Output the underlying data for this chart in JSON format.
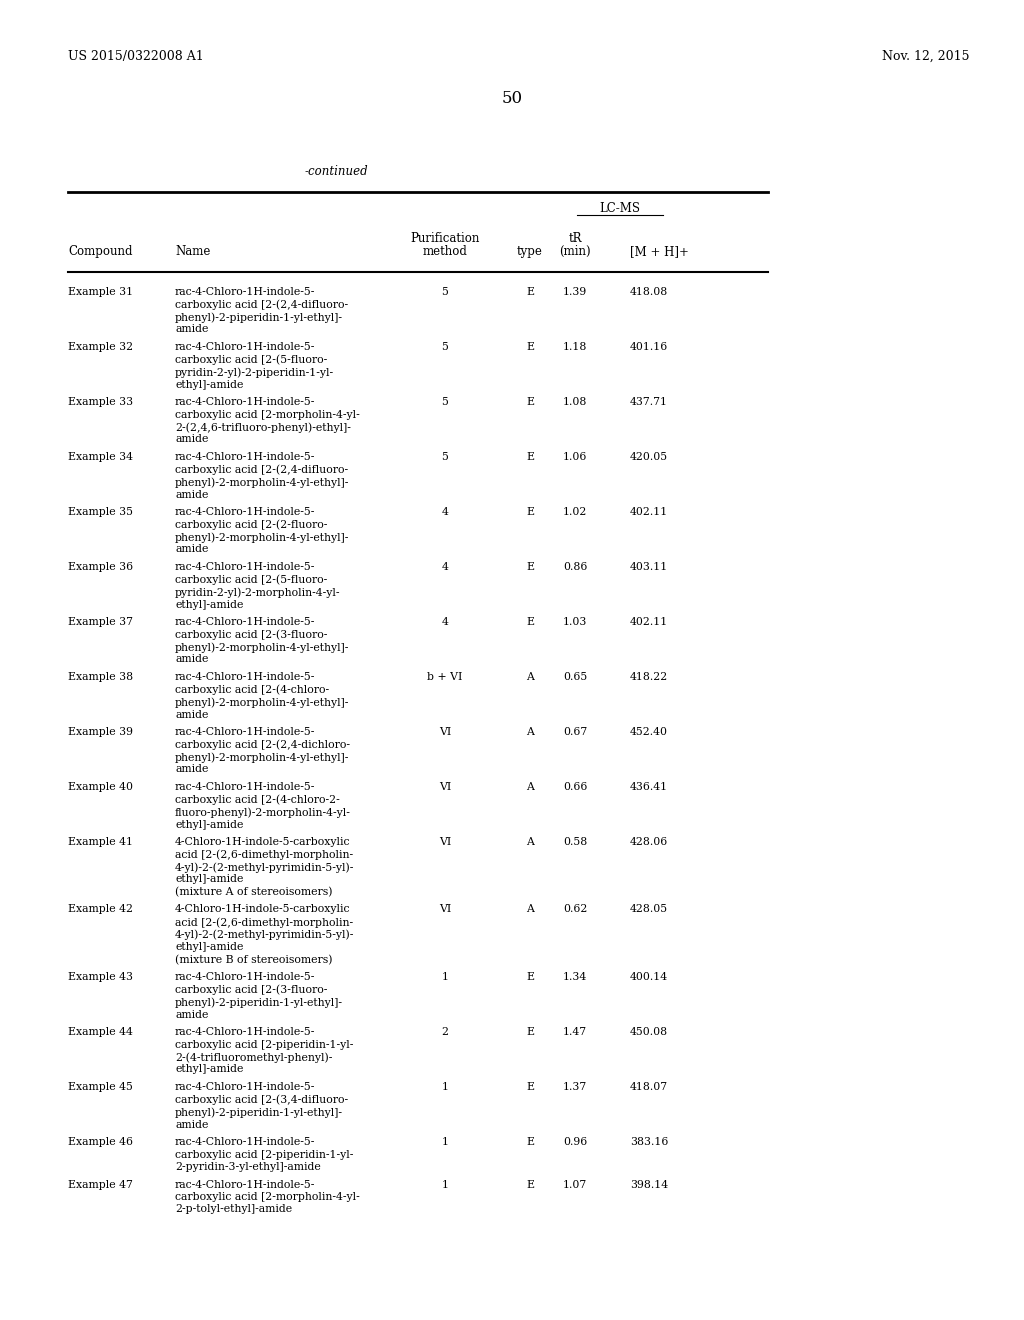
{
  "header_left": "US 2015/0322008 A1",
  "header_right": "Nov. 12, 2015",
  "page_number": "50",
  "continued_label": "-continued",
  "rows": [
    {
      "compound": "Example 31",
      "name": "rac-4-Chloro-1H-indole-5-\ncarboxylic acid [2-(2,4-difluoro-\nphenyl)-2-piperidin-1-yl-ethyl]-\namide",
      "purif": "5",
      "type": "E",
      "tR": "1.39",
      "mh": "418.08"
    },
    {
      "compound": "Example 32",
      "name": "rac-4-Chloro-1H-indole-5-\ncarboxylic acid [2-(5-fluoro-\npyridin-2-yl)-2-piperidin-1-yl-\nethyl]-amide",
      "purif": "5",
      "type": "E",
      "tR": "1.18",
      "mh": "401.16"
    },
    {
      "compound": "Example 33",
      "name": "rac-4-Chloro-1H-indole-5-\ncarboxylic acid [2-morpholin-4-yl-\n2-(2,4,6-trifluoro-phenyl)-ethyl]-\namide",
      "purif": "5",
      "type": "E",
      "tR": "1.08",
      "mh": "437.71"
    },
    {
      "compound": "Example 34",
      "name": "rac-4-Chloro-1H-indole-5-\ncarboxylic acid [2-(2,4-difluoro-\nphenyl)-2-morpholin-4-yl-ethyl]-\namide",
      "purif": "5",
      "type": "E",
      "tR": "1.06",
      "mh": "420.05"
    },
    {
      "compound": "Example 35",
      "name": "rac-4-Chloro-1H-indole-5-\ncarboxylic acid [2-(2-fluoro-\nphenyl)-2-morpholin-4-yl-ethyl]-\namide",
      "purif": "4",
      "type": "E",
      "tR": "1.02",
      "mh": "402.11"
    },
    {
      "compound": "Example 36",
      "name": "rac-4-Chloro-1H-indole-5-\ncarboxylic acid [2-(5-fluoro-\npyridin-2-yl)-2-morpholin-4-yl-\nethyl]-amide",
      "purif": "4",
      "type": "E",
      "tR": "0.86",
      "mh": "403.11"
    },
    {
      "compound": "Example 37",
      "name": "rac-4-Chloro-1H-indole-5-\ncarboxylic acid [2-(3-fluoro-\nphenyl)-2-morpholin-4-yl-ethyl]-\namide",
      "purif": "4",
      "type": "E",
      "tR": "1.03",
      "mh": "402.11"
    },
    {
      "compound": "Example 38",
      "name": "rac-4-Chloro-1H-indole-5-\ncarboxylic acid [2-(4-chloro-\nphenyl)-2-morpholin-4-yl-ethyl]-\namide",
      "purif": "b + VI",
      "type": "A",
      "tR": "0.65",
      "mh": "418.22"
    },
    {
      "compound": "Example 39",
      "name": "rac-4-Chloro-1H-indole-5-\ncarboxylic acid [2-(2,4-dichloro-\nphenyl)-2-morpholin-4-yl-ethyl]-\namide",
      "purif": "VI",
      "type": "A",
      "tR": "0.67",
      "mh": "452.40"
    },
    {
      "compound": "Example 40",
      "name": "rac-4-Chloro-1H-indole-5-\ncarboxylic acid [2-(4-chloro-2-\nfluoro-phenyl)-2-morpholin-4-yl-\nethyl]-amide",
      "purif": "VI",
      "type": "A",
      "tR": "0.66",
      "mh": "436.41"
    },
    {
      "compound": "Example 41",
      "name": "4-Chloro-1H-indole-5-carboxylic\nacid [2-(2,6-dimethyl-morpholin-\n4-yl)-2-(2-methyl-pyrimidin-5-yl)-\nethyl]-amide\n(mixture A of stereoisomers)",
      "purif": "VI",
      "type": "A",
      "tR": "0.58",
      "mh": "428.06"
    },
    {
      "compound": "Example 42",
      "name": "4-Chloro-1H-indole-5-carboxylic\nacid [2-(2,6-dimethyl-morpholin-\n4-yl)-2-(2-methyl-pyrimidin-5-yl)-\nethyl]-amide\n(mixture B of stereoisomers)",
      "purif": "VI",
      "type": "A",
      "tR": "0.62",
      "mh": "428.05"
    },
    {
      "compound": "Example 43",
      "name": "rac-4-Chloro-1H-indole-5-\ncarboxylic acid [2-(3-fluoro-\nphenyl)-2-piperidin-1-yl-ethyl]-\namide",
      "purif": "1",
      "type": "E",
      "tR": "1.34",
      "mh": "400.14"
    },
    {
      "compound": "Example 44",
      "name": "rac-4-Chloro-1H-indole-5-\ncarboxylic acid [2-piperidin-1-yl-\n2-(4-trifluoromethyl-phenyl)-\nethyl]-amide",
      "purif": "2",
      "type": "E",
      "tR": "1.47",
      "mh": "450.08"
    },
    {
      "compound": "Example 45",
      "name": "rac-4-Chloro-1H-indole-5-\ncarboxylic acid [2-(3,4-difluoro-\nphenyl)-2-piperidin-1-yl-ethyl]-\namide",
      "purif": "1",
      "type": "E",
      "tR": "1.37",
      "mh": "418.07"
    },
    {
      "compound": "Example 46",
      "name": "rac-4-Chloro-1H-indole-5-\ncarboxylic acid [2-piperidin-1-yl-\n2-pyridin-3-yl-ethyl]-amide",
      "purif": "1",
      "type": "E",
      "tR": "0.96",
      "mh": "383.16"
    },
    {
      "compound": "Example 47",
      "name": "rac-4-Chloro-1H-indole-5-\ncarboxylic acid [2-morpholin-4-yl-\n2-p-tolyl-ethyl]-amide",
      "purif": "1",
      "type": "E",
      "tR": "1.07",
      "mh": "398.14"
    }
  ]
}
